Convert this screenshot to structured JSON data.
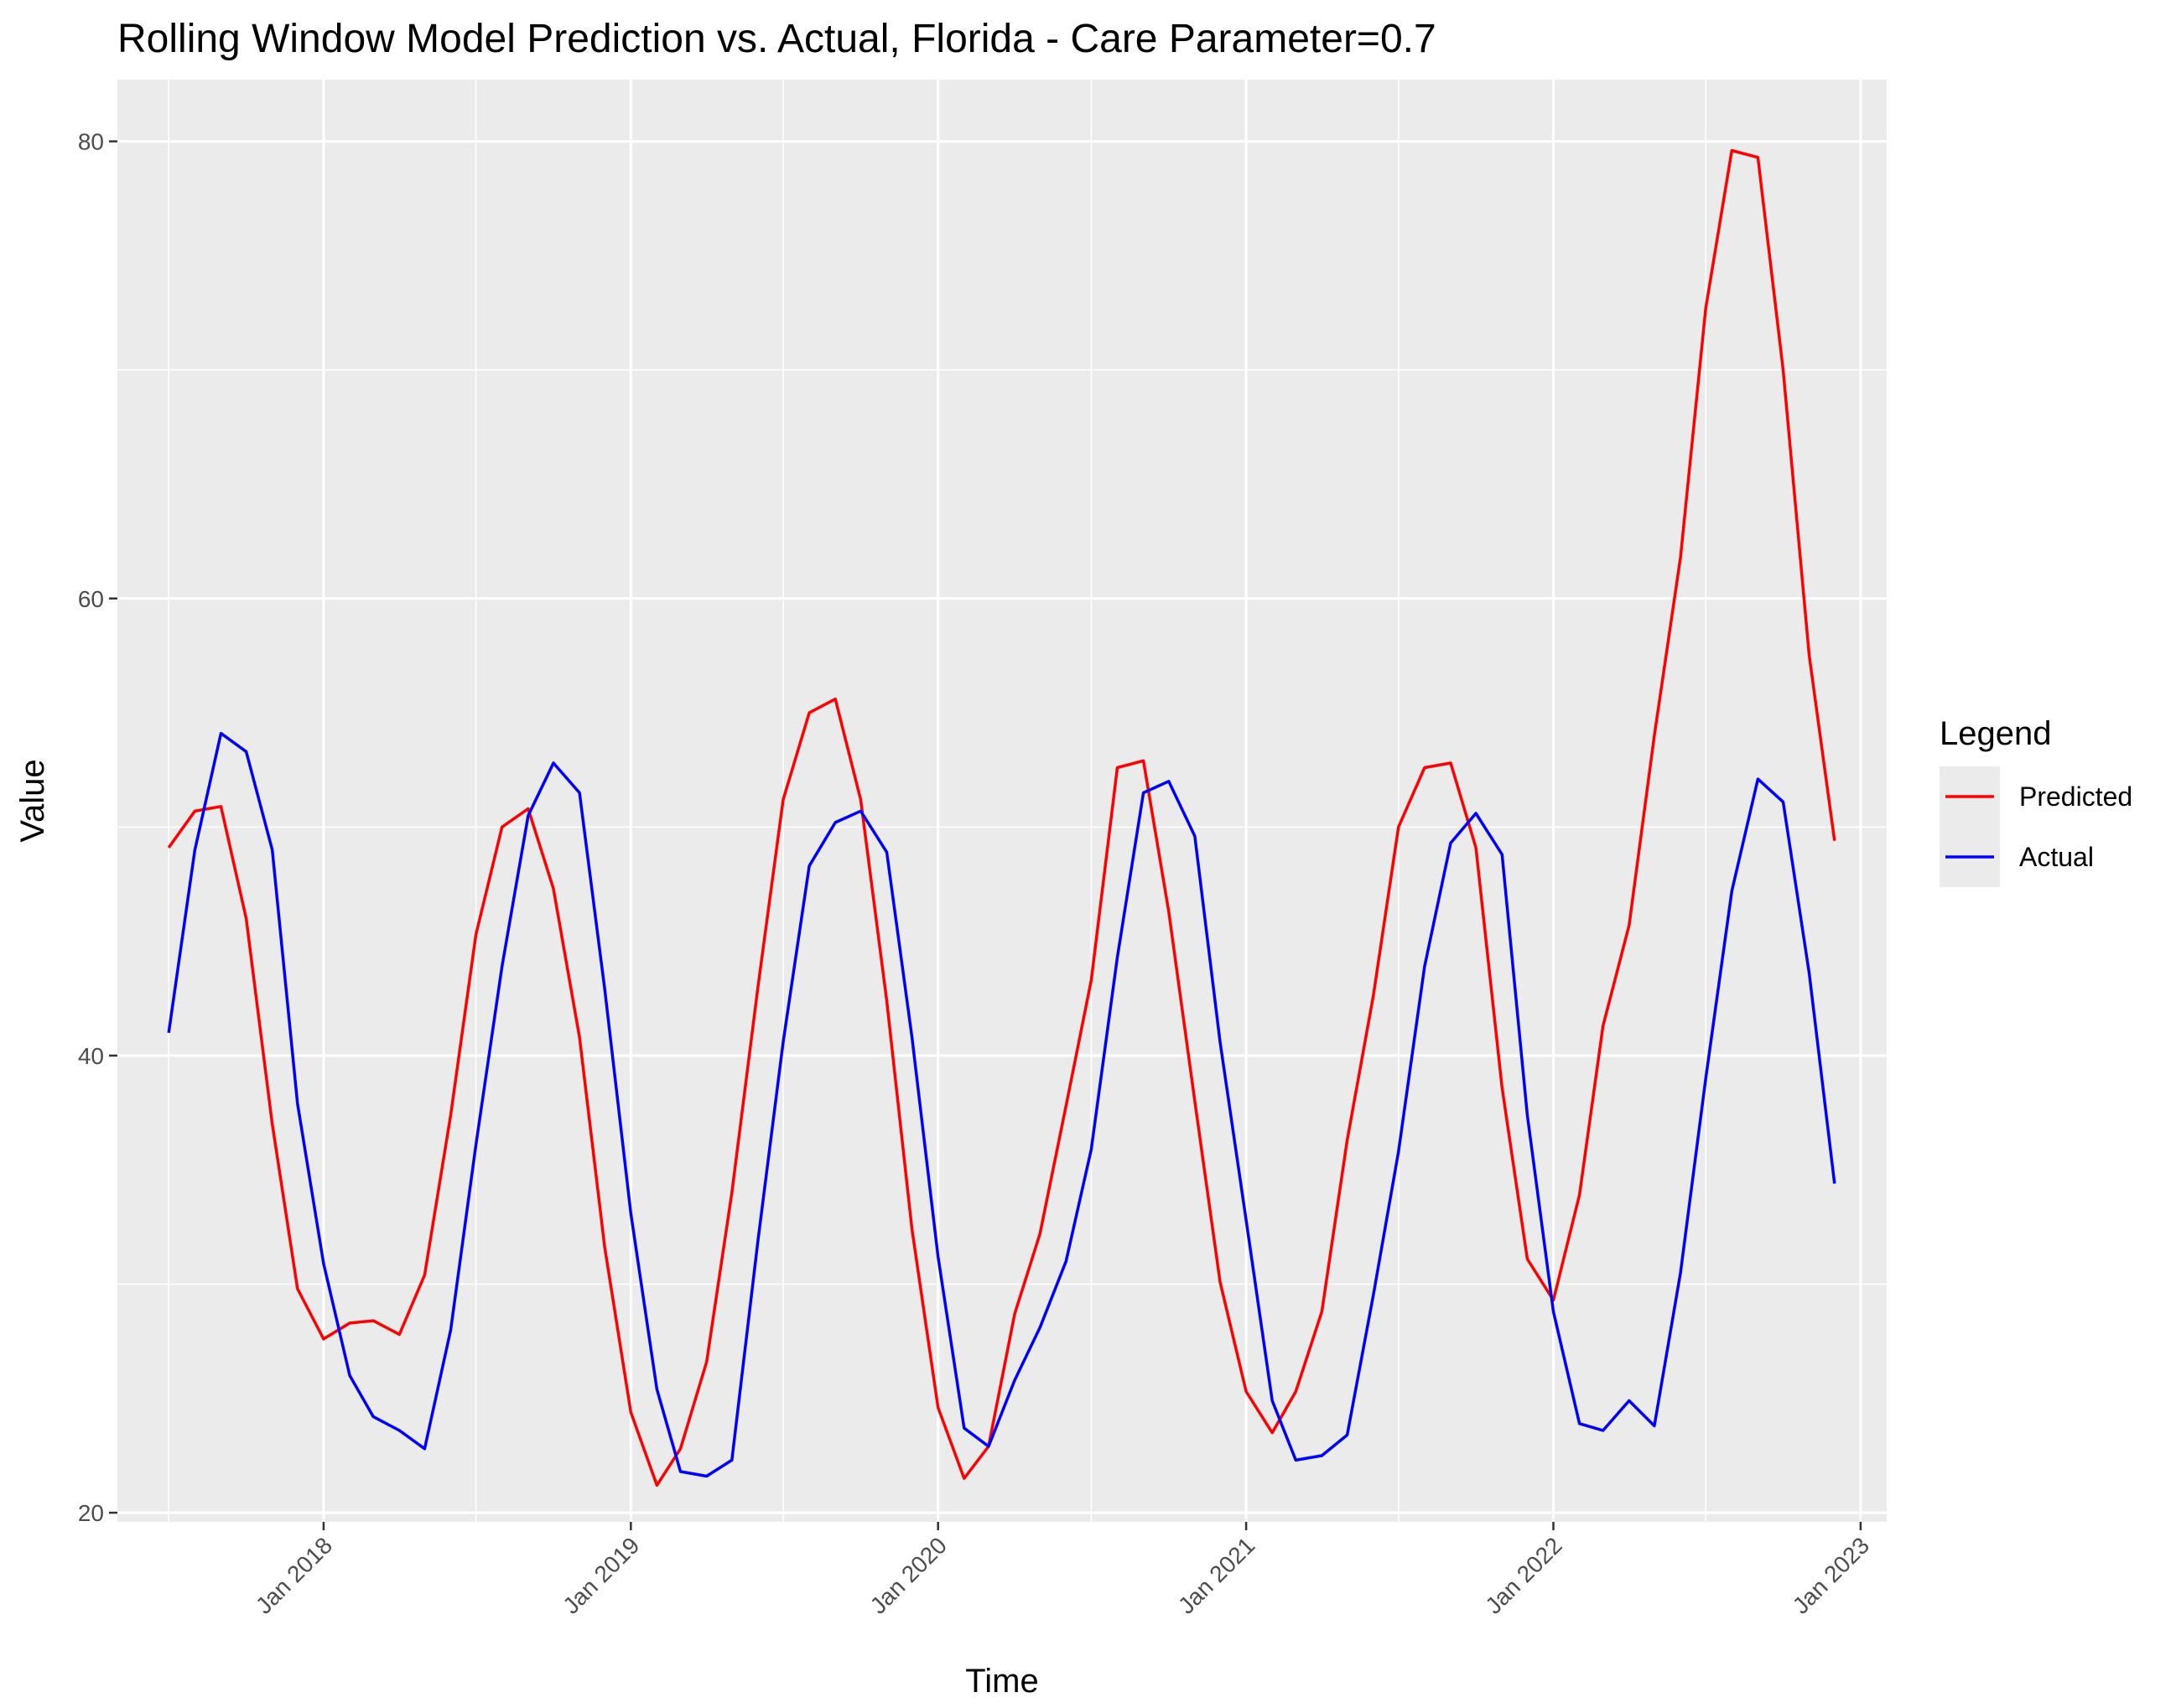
{
  "chart_data": {
    "type": "line",
    "title": "Rolling Window Model Prediction vs. Actual, Florida - Care Parameter=0.7",
    "xlabel": "Time",
    "ylabel": "Value",
    "xlim": [
      "2017-05-01",
      "2023-02-01"
    ],
    "ylim": [
      19.6,
      82.7
    ],
    "y_ticks": [
      20,
      40,
      60,
      80
    ],
    "x_ticks": [
      {
        "date": "2018-01-01",
        "label": "Jan 2018"
      },
      {
        "date": "2019-01-01",
        "label": "Jan 2019"
      },
      {
        "date": "2020-01-01",
        "label": "Jan 2020"
      },
      {
        "date": "2021-01-01",
        "label": "Jan 2021"
      },
      {
        "date": "2022-01-01",
        "label": "Jan 2022"
      },
      {
        "date": "2023-01-01",
        "label": "Jan 2023"
      }
    ],
    "grid": true,
    "legend_title": "Legend",
    "legend_position": "right",
    "x": [
      "2017-07-01",
      "2017-08-01",
      "2017-09-01",
      "2017-10-01",
      "2017-11-01",
      "2017-12-01",
      "2018-01-01",
      "2018-02-01",
      "2018-03-01",
      "2018-04-01",
      "2018-05-01",
      "2018-06-01",
      "2018-07-01",
      "2018-08-01",
      "2018-09-01",
      "2018-10-01",
      "2018-11-01",
      "2018-12-01",
      "2019-01-01",
      "2019-02-01",
      "2019-03-01",
      "2019-04-01",
      "2019-05-01",
      "2019-06-01",
      "2019-07-01",
      "2019-08-01",
      "2019-09-01",
      "2019-10-01",
      "2019-11-01",
      "2019-12-01",
      "2020-01-01",
      "2020-02-01",
      "2020-03-01",
      "2020-04-01",
      "2020-05-01",
      "2020-06-01",
      "2020-07-01",
      "2020-08-01",
      "2020-09-01",
      "2020-10-01",
      "2020-11-01",
      "2020-12-01",
      "2021-01-01",
      "2021-02-01",
      "2021-03-01",
      "2021-04-01",
      "2021-05-01",
      "2021-06-01",
      "2021-07-01",
      "2021-08-01",
      "2021-09-01",
      "2021-10-01",
      "2021-11-01",
      "2021-12-01",
      "2022-01-01",
      "2022-02-01",
      "2022-03-01",
      "2022-04-01",
      "2022-05-01",
      "2022-06-01",
      "2022-07-01",
      "2022-08-01",
      "2022-09-01",
      "2022-10-01",
      "2022-11-01",
      "2022-12-01"
    ],
    "series": [
      {
        "name": "Predicted",
        "color": "#ff0000",
        "values": [
          49.1,
          50.7,
          50.9,
          46.0,
          37.0,
          29.8,
          27.6,
          28.3,
          28.4,
          27.8,
          30.4,
          37.4,
          45.3,
          50.0,
          50.8,
          47.3,
          40.8,
          31.6,
          24.4,
          21.2,
          22.8,
          26.6,
          34.0,
          43.0,
          51.2,
          55.0,
          55.6,
          51.2,
          42.4,
          32.4,
          24.6,
          21.5,
          22.9,
          28.7,
          32.2,
          37.8,
          43.3,
          52.6,
          52.9,
          46.3,
          38.0,
          30.1,
          25.3,
          23.5,
          25.3,
          28.8,
          36.3,
          42.6,
          50.0,
          52.6,
          52.8,
          49.1,
          38.6,
          31.1,
          29.3,
          33.9,
          41.3,
          45.7,
          54.0,
          61.8,
          72.7,
          79.6,
          79.3,
          70.0,
          57.5,
          49.4
        ]
      },
      {
        "name": "Actual",
        "color": "#0000ff",
        "values": [
          41.0,
          49.0,
          54.1,
          53.3,
          49.0,
          37.9,
          30.9,
          26.0,
          24.2,
          23.6,
          22.8,
          28.0,
          36.1,
          43.9,
          50.5,
          52.8,
          51.5,
          42.9,
          33.1,
          25.4,
          21.8,
          21.6,
          22.3,
          31.9,
          40.6,
          48.3,
          50.2,
          50.7,
          48.9,
          40.8,
          31.2,
          23.7,
          22.9,
          25.8,
          28.1,
          31.0,
          35.9,
          44.3,
          51.5,
          52.0,
          49.6,
          40.6,
          32.8,
          24.9,
          22.3,
          22.5,
          23.4,
          29.5,
          35.8,
          43.9,
          49.3,
          50.6,
          48.8,
          37.4,
          28.8,
          23.9,
          23.6,
          24.9,
          23.8,
          30.5,
          39.0,
          47.2,
          52.1,
          51.1,
          43.6,
          34.4
        ]
      }
    ]
  }
}
